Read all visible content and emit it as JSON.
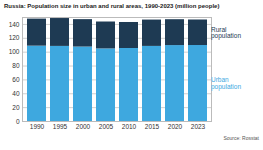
{
  "chart_data": {
    "type": "bar",
    "title": "Russia: Population size in urban and rural areas, 1990-2023 (million people)",
    "source": "Source: Rosstat",
    "categories": [
      "1990",
      "1995",
      "2000",
      "2005",
      "2010",
      "2015",
      "2020",
      "2023"
    ],
    "series": [
      {
        "name": "Urban population",
        "color": "#3ea8df",
        "values": [
          108.7,
          108.3,
          107.4,
          104.7,
          105.3,
          108.3,
          109.5,
          109.6
        ]
      },
      {
        "name": "Rural population",
        "color": "#1e3a53",
        "values": [
          39.0,
          40.2,
          39.5,
          38.8,
          37.5,
          38.0,
          37.3,
          36.8
        ]
      }
    ],
    "ylim": [
      0,
      150
    ],
    "yticks": [
      0,
      20,
      40,
      60,
      80,
      100,
      120,
      140
    ],
    "grid": true,
    "stacked": true,
    "legend": "right"
  }
}
